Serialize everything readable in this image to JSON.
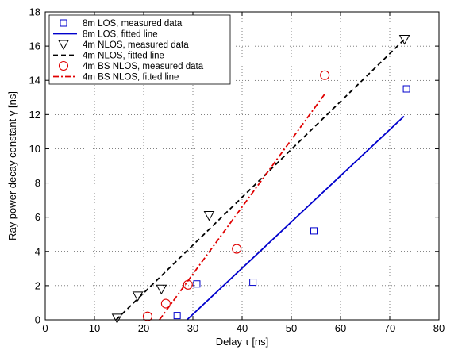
{
  "chart_data": {
    "type": "scatter",
    "title": "",
    "xlabel": "Delay τ [ns]",
    "ylabel": "Ray power decay constant γ [ns]",
    "xlim": [
      0,
      80
    ],
    "ylim": [
      0,
      18
    ],
    "xticks": [
      0,
      10,
      20,
      30,
      40,
      50,
      60,
      70,
      80
    ],
    "yticks": [
      0,
      2,
      4,
      6,
      8,
      10,
      12,
      14,
      16,
      18
    ],
    "grid": true,
    "legend_position": "top-left",
    "series": [
      {
        "name": "8m LOS, measured data",
        "kind": "markers",
        "marker": "square",
        "color": "#0000cc",
        "x": [
          26.8,
          30.8,
          42.2,
          54.6,
          73.4
        ],
        "y": [
          0.25,
          2.1,
          2.2,
          5.2,
          13.5
        ]
      },
      {
        "name": "8m LOS, fitted line",
        "kind": "line",
        "dash": "solid",
        "color": "#0000cc",
        "x": [
          28.8,
          72.9
        ],
        "y": [
          0.0,
          11.9
        ]
      },
      {
        "name": "4m NLOS, measured data",
        "kind": "markers",
        "marker": "triangle-down",
        "color": "#000000",
        "x": [
          14.6,
          18.8,
          23.6,
          33.3,
          73.0
        ],
        "y": [
          0.1,
          1.4,
          1.8,
          6.1,
          16.4
        ]
      },
      {
        "name": "4m NLOS, fitted line",
        "kind": "line",
        "dash": "dashed",
        "color": "#000000",
        "x": [
          14.4,
          73.0
        ],
        "y": [
          0.0,
          16.4
        ]
      },
      {
        "name": "4m BS NLOS, measured data",
        "kind": "markers",
        "marker": "circle",
        "color": "#e00000",
        "x": [
          20.8,
          24.5,
          29.0,
          38.9,
          56.8
        ],
        "y": [
          0.2,
          0.95,
          2.05,
          4.15,
          14.3
        ]
      },
      {
        "name": "4m BS NLOS, fitted line",
        "kind": "line",
        "dash": "dashdot",
        "color": "#e00000",
        "x": [
          23.2,
          56.8
        ],
        "y": [
          0.0,
          13.2
        ]
      }
    ]
  }
}
